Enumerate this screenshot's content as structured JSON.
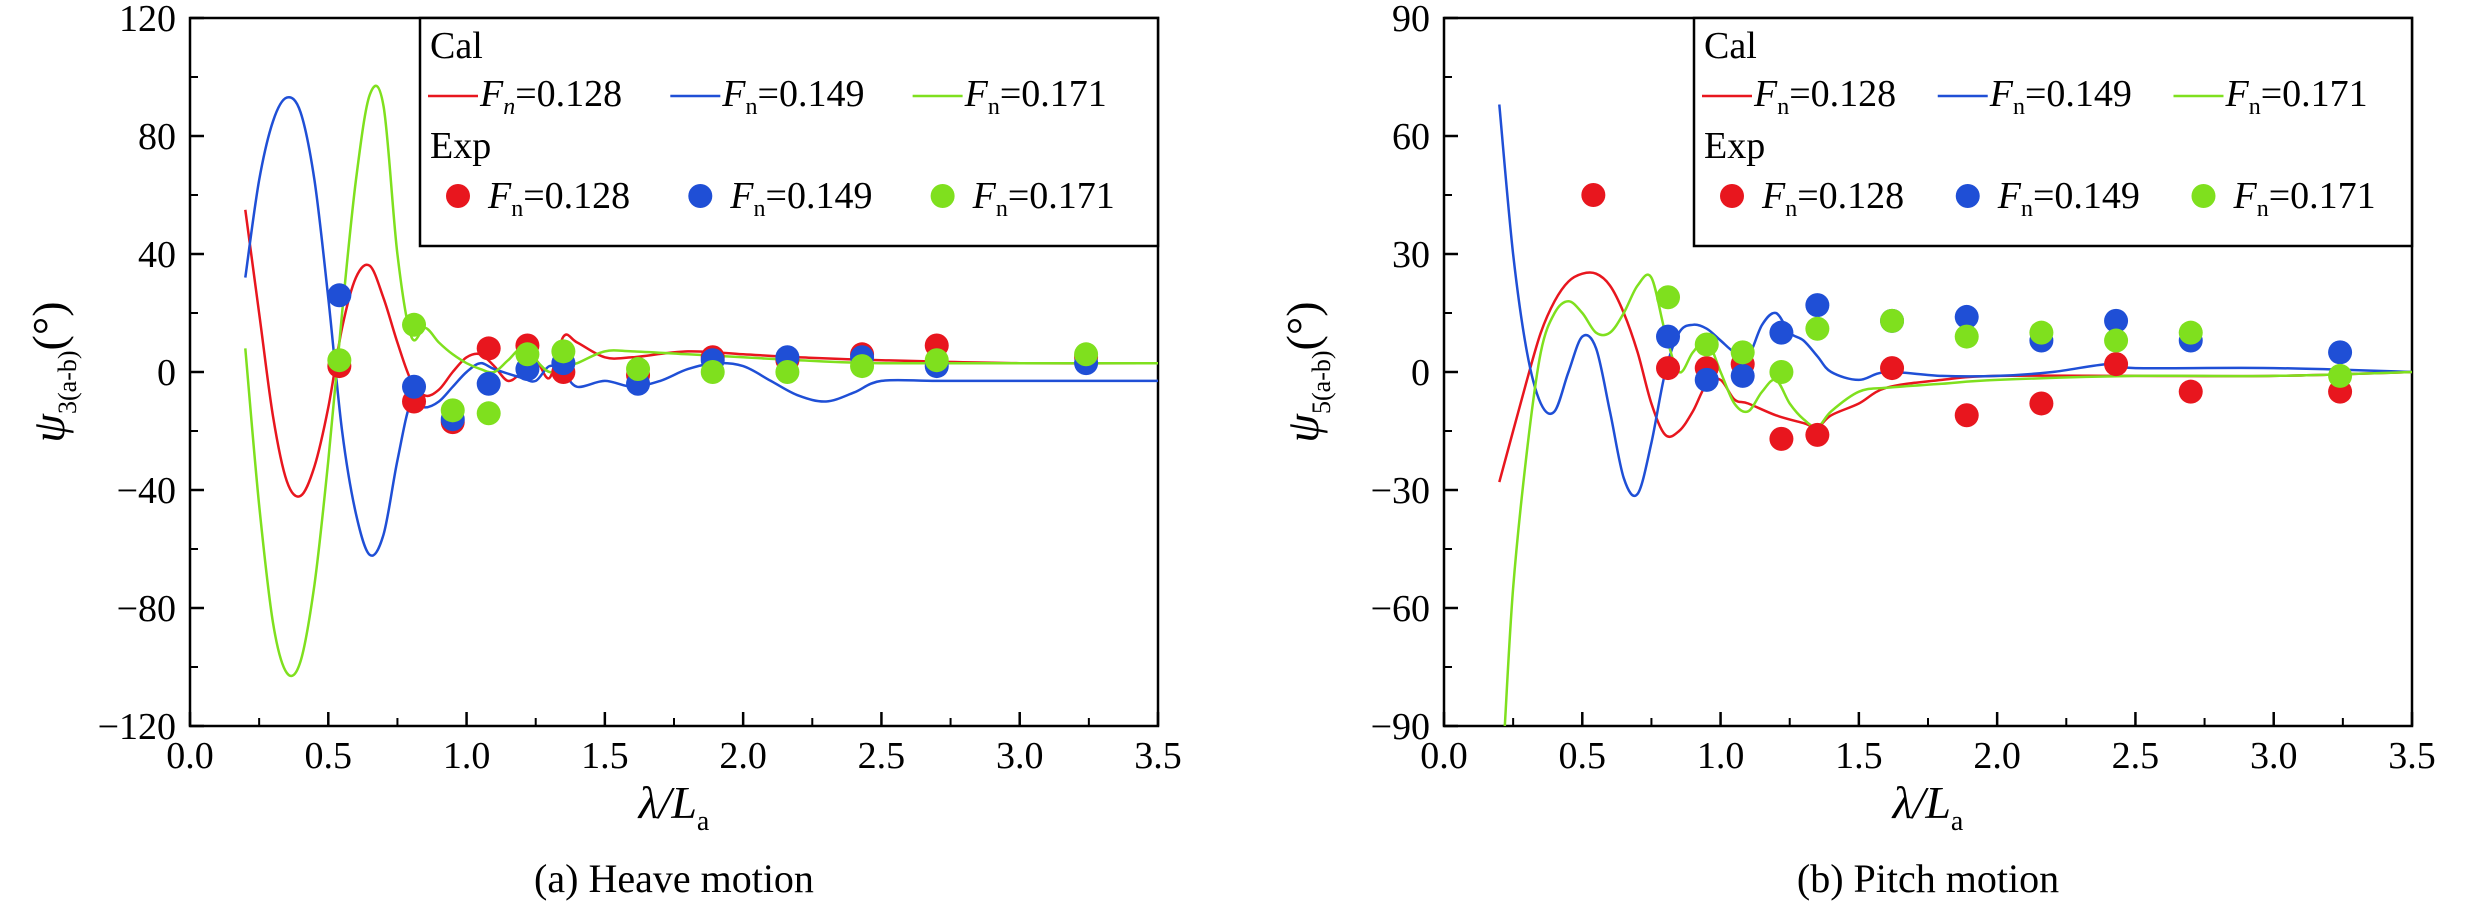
{
  "colors": {
    "red": "#e8161e",
    "blue": "#1f4fd6",
    "green": "#7fe01e",
    "axis": "#000000"
  },
  "chart_data": [
    {
      "type": "line",
      "caption": "(a) Heave motion",
      "xlabel": {
        "main": "λ/L",
        "sub": "a"
      },
      "ylabel": {
        "main": "ψ",
        "sub": "3(a-b)",
        "unit": "(°)"
      },
      "xlim": [
        0.0,
        3.5
      ],
      "ylim": [
        -120,
        120
      ],
      "xticks": [
        "0.0",
        "0.5",
        "1.0",
        "1.5",
        "2.0",
        "2.5",
        "3.0",
        "3.5"
      ],
      "yticks": [
        "−120",
        "−80",
        "−40",
        "0",
        "40",
        "80",
        "120"
      ],
      "grid": false,
      "legend": {
        "placement": "top-right",
        "cal_title": "Cal",
        "exp_title": "Exp",
        "cal_entries": [
          {
            "var": "F",
            "sub": "n",
            "value": "=0.128",
            "color": "red",
            "sub_italic": true
          },
          {
            "var": "F",
            "sub": "n",
            "value": "=0.149",
            "color": "blue"
          },
          {
            "var": "F",
            "sub": "n",
            "value": "=0.171",
            "color": "green"
          }
        ],
        "exp_entries": [
          {
            "var": "F",
            "sub": "n",
            "value": "=0.128",
            "color": "red"
          },
          {
            "var": "F",
            "sub": "n",
            "value": "=0.149",
            "color": "blue"
          },
          {
            "var": "F",
            "sub": "n",
            "value": "=0.171",
            "color": "green"
          }
        ]
      },
      "series": [
        {
          "kind": "line",
          "color": "red",
          "x": [
            0.2,
            0.25,
            0.3,
            0.35,
            0.4,
            0.45,
            0.5,
            0.55,
            0.6,
            0.65,
            0.7,
            0.75,
            0.8,
            0.85,
            0.9,
            0.95,
            1.0,
            1.05,
            1.1,
            1.15,
            1.2,
            1.25,
            1.3,
            1.35,
            1.4,
            1.5,
            1.6,
            1.8,
            2.0,
            2.2,
            2.5,
            3.0,
            3.5
          ],
          "y": [
            55,
            20,
            -15,
            -37,
            -42,
            -32,
            -12,
            15,
            32,
            36,
            25,
            10,
            -3,
            -8,
            -6,
            0,
            5,
            6,
            2,
            -3,
            0,
            4,
            -2,
            12,
            10,
            5,
            5,
            7,
            6,
            5,
            4,
            3,
            3
          ]
        },
        {
          "kind": "line",
          "color": "blue",
          "x": [
            0.2,
            0.25,
            0.3,
            0.35,
            0.4,
            0.45,
            0.5,
            0.55,
            0.6,
            0.65,
            0.7,
            0.75,
            0.8,
            0.85,
            0.9,
            0.95,
            1.0,
            1.05,
            1.1,
            1.2,
            1.25,
            1.3,
            1.35,
            1.4,
            1.5,
            1.6,
            1.7,
            1.8,
            1.9,
            2.0,
            2.1,
            2.2,
            2.3,
            2.4,
            2.5,
            2.7,
            3.0,
            3.5
          ],
          "y": [
            32,
            65,
            85,
            93,
            88,
            65,
            25,
            -20,
            -48,
            -62,
            -55,
            -30,
            -10,
            -12,
            -10,
            -5,
            0,
            3,
            1,
            -2,
            -3,
            2,
            0,
            -5,
            -3,
            -5,
            -3,
            1,
            3,
            2,
            -3,
            -8,
            -10,
            -7,
            -3,
            -3,
            -3,
            -3
          ]
        },
        {
          "kind": "line",
          "color": "green",
          "x": [
            0.2,
            0.25,
            0.3,
            0.35,
            0.4,
            0.45,
            0.5,
            0.55,
            0.6,
            0.65,
            0.7,
            0.75,
            0.8,
            0.85,
            0.9,
            0.95,
            1.0,
            1.05,
            1.1,
            1.15,
            1.2,
            1.25,
            1.3,
            1.35,
            1.4,
            1.5,
            1.6,
            1.8,
            2.0,
            2.2,
            2.5,
            3.0,
            3.5
          ],
          "y": [
            8,
            -45,
            -85,
            -102,
            -98,
            -72,
            -30,
            20,
            65,
            94,
            90,
            40,
            12,
            15,
            10,
            6,
            3,
            1,
            0,
            4,
            8,
            4,
            0,
            2,
            3,
            7,
            7,
            6,
            5,
            4,
            3,
            3,
            3
          ]
        },
        {
          "kind": "scatter",
          "color": "red",
          "x": [
            0.54,
            0.81,
            0.95,
            1.08,
            1.22,
            1.35,
            1.62,
            1.89,
            2.16,
            2.43,
            2.7,
            3.24
          ],
          "y": [
            2,
            -10,
            -17,
            8,
            9,
            0,
            -1,
            5,
            4,
            6,
            9,
            5
          ]
        },
        {
          "kind": "scatter",
          "color": "blue",
          "x": [
            0.54,
            0.81,
            0.95,
            1.08,
            1.22,
            1.35,
            1.62,
            1.89,
            2.16,
            2.43,
            2.7,
            3.24
          ],
          "y": [
            26,
            -5,
            -16,
            -4,
            1,
            3,
            -4,
            4,
            5,
            5,
            2,
            3
          ]
        },
        {
          "kind": "scatter",
          "color": "green",
          "x": [
            0.54,
            0.81,
            0.95,
            1.08,
            1.22,
            1.35,
            1.62,
            1.89,
            2.16,
            2.43,
            2.7,
            3.24
          ],
          "y": [
            4,
            16,
            -13,
            -14,
            6,
            7,
            1,
            0,
            0,
            2,
            4,
            6
          ]
        }
      ]
    },
    {
      "type": "line",
      "caption": "(b) Pitch motion",
      "xlabel": {
        "main": "λ/L",
        "sub": "a"
      },
      "ylabel": {
        "main": "ψ",
        "sub": "5(a-b)",
        "unit": "(°)"
      },
      "xlim": [
        0.0,
        3.5
      ],
      "ylim": [
        -90,
        90
      ],
      "xticks": [
        "0.0",
        "0.5",
        "1.0",
        "1.5",
        "2.0",
        "2.5",
        "3.0",
        "3.5"
      ],
      "yticks": [
        "−90",
        "−60",
        "−30",
        "0",
        "30",
        "60",
        "90"
      ],
      "grid": false,
      "legend": {
        "placement": "top-right",
        "cal_title": "Cal",
        "exp_title": "Exp",
        "cal_entries": [
          {
            "var": "F",
            "sub": "n",
            "value": "=0.128",
            "color": "red"
          },
          {
            "var": "F",
            "sub": "n",
            "value": "=0.149",
            "color": "blue"
          },
          {
            "var": "F",
            "sub": "n",
            "value": "=0.171",
            "color": "green"
          }
        ],
        "exp_entries": [
          {
            "var": "F",
            "sub": "n",
            "value": "=0.128",
            "color": "red"
          },
          {
            "var": "F",
            "sub": "n",
            "value": "=0.149",
            "color": "blue"
          },
          {
            "var": "F",
            "sub": "n",
            "value": "=0.171",
            "color": "green"
          }
        ]
      },
      "series": [
        {
          "kind": "line",
          "color": "red",
          "x": [
            0.2,
            0.25,
            0.3,
            0.35,
            0.4,
            0.45,
            0.5,
            0.55,
            0.6,
            0.65,
            0.7,
            0.75,
            0.8,
            0.85,
            0.9,
            0.95,
            1.0,
            1.05,
            1.1,
            1.2,
            1.3,
            1.35,
            1.4,
            1.5,
            1.6,
            1.8,
            2.0,
            2.5,
            3.0,
            3.5
          ],
          "y": [
            -28,
            -15,
            -2,
            10,
            18,
            23,
            25,
            25,
            22,
            15,
            5,
            -8,
            -16,
            -15,
            -10,
            -3,
            -2,
            -7,
            -8,
            -11,
            -13,
            -14,
            -11,
            -8,
            -4,
            -2,
            -1,
            -1,
            -1,
            0
          ]
        },
        {
          "kind": "line",
          "color": "blue",
          "x": [
            0.2,
            0.25,
            0.3,
            0.35,
            0.4,
            0.45,
            0.5,
            0.55,
            0.6,
            0.65,
            0.7,
            0.75,
            0.8,
            0.85,
            0.9,
            0.95,
            1.0,
            1.05,
            1.1,
            1.15,
            1.2,
            1.25,
            1.3,
            1.35,
            1.4,
            1.5,
            1.6,
            1.8,
            2.0,
            2.2,
            2.4,
            2.5,
            3.0,
            3.5
          ],
          "y": [
            68,
            30,
            5,
            -8,
            -10,
            0,
            9,
            6,
            -10,
            -27,
            -31,
            -18,
            0,
            10,
            12,
            11,
            8,
            5,
            4,
            12,
            15,
            10,
            8,
            4,
            0,
            -2,
            0,
            -1,
            -1,
            0,
            2,
            1,
            1,
            0
          ]
        },
        {
          "kind": "line",
          "color": "green",
          "x": [
            0.22,
            0.25,
            0.3,
            0.35,
            0.4,
            0.45,
            0.5,
            0.55,
            0.6,
            0.65,
            0.7,
            0.75,
            0.8,
            0.85,
            0.9,
            0.95,
            1.0,
            1.05,
            1.1,
            1.15,
            1.2,
            1.25,
            1.3,
            1.35,
            1.4,
            1.5,
            1.6,
            1.8,
            2.0,
            2.5,
            3.0,
            3.5
          ],
          "y": [
            -90,
            -55,
            -20,
            5,
            15,
            18,
            15,
            10,
            10,
            15,
            22,
            24,
            10,
            0,
            5,
            8,
            0,
            -8,
            -10,
            -5,
            -2,
            -8,
            -12,
            -14,
            -10,
            -5,
            -4,
            -3,
            -2,
            -1,
            -1,
            0
          ]
        },
        {
          "kind": "scatter",
          "color": "red",
          "x": [
            0.54,
            0.81,
            0.95,
            1.08,
            1.22,
            1.35,
            1.62,
            1.89,
            2.16,
            2.43,
            2.7,
            3.24
          ],
          "y": [
            45,
            1,
            1,
            2,
            -17,
            -16,
            1,
            -11,
            -8,
            2,
            -5,
            -5
          ]
        },
        {
          "kind": "scatter",
          "color": "blue",
          "x": [
            0.81,
            0.95,
            1.08,
            1.22,
            1.35,
            1.62,
            1.89,
            2.16,
            2.43,
            2.7,
            3.24
          ],
          "y": [
            9,
            -2,
            -1,
            10,
            17,
            13,
            14,
            8,
            13,
            8,
            5
          ]
        },
        {
          "kind": "scatter",
          "color": "green",
          "x": [
            0.81,
            0.95,
            1.08,
            1.22,
            1.35,
            1.62,
            1.89,
            2.16,
            2.43,
            2.7,
            3.24
          ],
          "y": [
            19,
            7,
            5,
            0,
            11,
            13,
            9,
            10,
            8,
            10,
            -1
          ]
        }
      ]
    }
  ]
}
